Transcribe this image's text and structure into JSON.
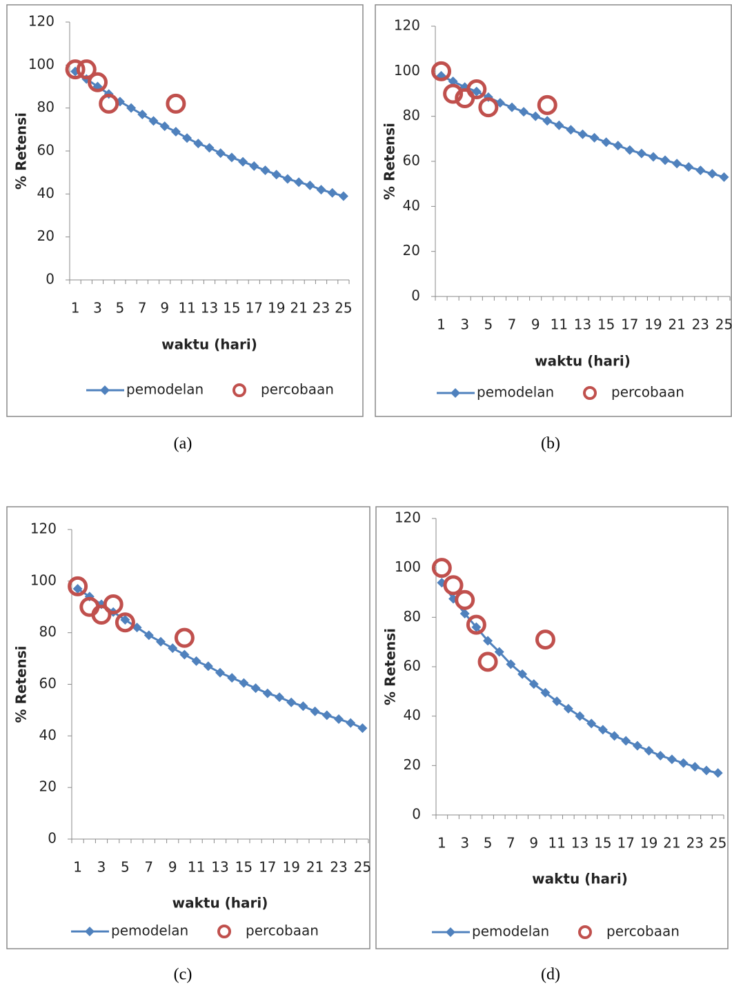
{
  "chart_data": [
    {
      "type": "line",
      "caption": "(a)",
      "xlabel": "waktu (hari)",
      "ylabel": "% Retensi",
      "categories": [
        1,
        null,
        3,
        null,
        5,
        null,
        7,
        null,
        9,
        null,
        11,
        null,
        13,
        null,
        15,
        null,
        17,
        null,
        19,
        null,
        21,
        null,
        23,
        null,
        25
      ],
      "ylim": [
        0,
        120
      ],
      "yticks": [
        0,
        20,
        40,
        60,
        80,
        100,
        120
      ],
      "series": [
        {
          "name": "pemodelan",
          "color": "#4f81bd",
          "marker": "diamond",
          "line": true,
          "values": [
            97,
            93.5,
            90,
            86.5,
            83,
            80,
            77,
            74,
            71.5,
            69,
            66,
            63.5,
            61.5,
            59,
            57,
            55,
            53,
            51,
            49,
            47,
            45.5,
            44,
            42,
            40.5,
            39
          ]
        },
        {
          "name": "percobaan",
          "color": "#c0504d",
          "marker": "circle",
          "line": false,
          "values": [
            98,
            98,
            92,
            82,
            null,
            null,
            null,
            null,
            null,
            82,
            null,
            null,
            null,
            null,
            null,
            null,
            null,
            null,
            null,
            null,
            null,
            null,
            null,
            null,
            null
          ]
        }
      ]
    },
    {
      "type": "line",
      "caption": "(b)",
      "xlabel": "waktu (hari)",
      "ylabel": "% Retensi",
      "categories": [
        1,
        null,
        3,
        null,
        5,
        null,
        7,
        null,
        9,
        null,
        11,
        null,
        13,
        null,
        15,
        null,
        17,
        null,
        19,
        null,
        21,
        null,
        23,
        null,
        25
      ],
      "ylim": [
        0,
        120
      ],
      "yticks": [
        0,
        20,
        40,
        60,
        80,
        100,
        120
      ],
      "series": [
        {
          "name": "pemodelan",
          "color": "#4f81bd",
          "marker": "diamond",
          "line": true,
          "values": [
            98,
            95.5,
            93,
            91,
            88.5,
            86,
            84,
            82,
            80,
            78,
            76,
            74,
            72,
            70.5,
            68.5,
            67,
            65,
            63.5,
            62,
            60.5,
            59,
            57.5,
            56,
            54.5,
            53
          ]
        },
        {
          "name": "percobaan",
          "color": "#c0504d",
          "marker": "circle",
          "line": false,
          "values": [
            100,
            90,
            88,
            92,
            84,
            null,
            null,
            null,
            null,
            85,
            null,
            null,
            null,
            null,
            null,
            null,
            null,
            null,
            null,
            null,
            null,
            null,
            null,
            null,
            null
          ]
        }
      ]
    },
    {
      "type": "line",
      "caption": "(c)",
      "xlabel": "waktu (hari)",
      "ylabel": "% Retensi",
      "categories": [
        1,
        null,
        3,
        null,
        5,
        null,
        7,
        null,
        9,
        null,
        11,
        null,
        13,
        null,
        15,
        null,
        17,
        null,
        19,
        null,
        21,
        null,
        23,
        null,
        25
      ],
      "ylim": [
        0,
        120
      ],
      "yticks": [
        0,
        20,
        40,
        60,
        80,
        100,
        120
      ],
      "series": [
        {
          "name": "pemodelan",
          "color": "#4f81bd",
          "marker": "diamond",
          "line": true,
          "values": [
            97,
            94,
            91,
            88,
            85,
            82,
            79,
            76.5,
            74,
            71.5,
            69,
            67,
            64.5,
            62.5,
            60.5,
            58.5,
            56.5,
            55,
            53,
            51.5,
            49.5,
            48,
            46.5,
            45,
            43
          ]
        },
        {
          "name": "percobaan",
          "color": "#c0504d",
          "marker": "circle",
          "line": false,
          "values": [
            98,
            90,
            87,
            91,
            84,
            null,
            null,
            null,
            null,
            78,
            null,
            null,
            null,
            null,
            null,
            null,
            null,
            null,
            null,
            null,
            null,
            null,
            null,
            null,
            null
          ]
        }
      ]
    },
    {
      "type": "line",
      "caption": "(d)",
      "xlabel": "waktu (hari)",
      "ylabel": "% Retensi",
      "categories": [
        1,
        null,
        3,
        null,
        5,
        null,
        7,
        null,
        9,
        null,
        11,
        null,
        13,
        null,
        15,
        null,
        17,
        null,
        19,
        null,
        21,
        null,
        23,
        null,
        25
      ],
      "ylim": [
        0,
        120
      ],
      "yticks": [
        0,
        20,
        40,
        60,
        80,
        100,
        120
      ],
      "series": [
        {
          "name": "pemodelan",
          "color": "#4f81bd",
          "marker": "diamond",
          "line": true,
          "values": [
            94,
            87.5,
            81.5,
            76,
            70.5,
            66,
            61,
            57,
            53,
            49.5,
            46,
            43,
            40,
            37,
            34.5,
            32,
            30,
            28,
            26,
            24,
            22.5,
            21,
            19.5,
            18,
            17
          ]
        },
        {
          "name": "percobaan",
          "color": "#c0504d",
          "marker": "circle",
          "line": false,
          "values": [
            100,
            93,
            87,
            77,
            62,
            null,
            null,
            null,
            null,
            71,
            null,
            null,
            null,
            null,
            null,
            null,
            null,
            null,
            null,
            null,
            null,
            null,
            null,
            null,
            null
          ]
        }
      ]
    }
  ]
}
